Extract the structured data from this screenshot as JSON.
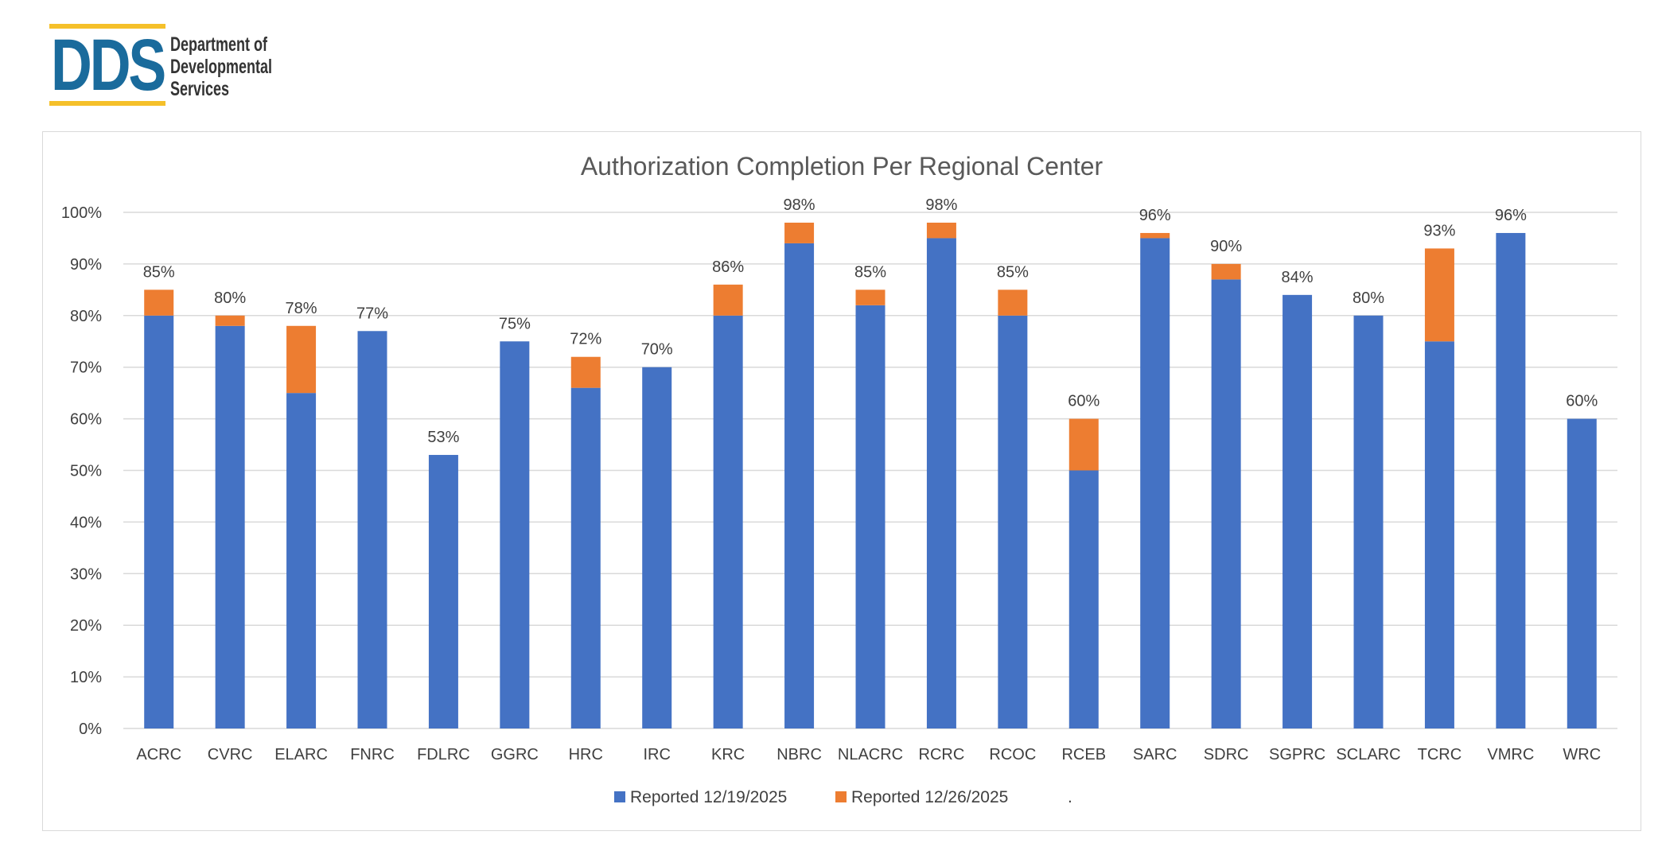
{
  "logo": {
    "abbr": "DDS",
    "lines": [
      "Department of",
      "Developmental",
      "Services"
    ]
  },
  "colors": {
    "series1": "#4472c4",
    "series2": "#ed7d31",
    "grid": "#d9d9d9",
    "text": "#404040"
  },
  "chart_data": {
    "type": "bar",
    "stacked": true,
    "title": "Authorization Completion Per Regional Center",
    "xlabel": "",
    "ylabel": "",
    "ylim": [
      0,
      100
    ],
    "yticks": [
      "0%",
      "10%",
      "20%",
      "30%",
      "40%",
      "50%",
      "60%",
      "70%",
      "80%",
      "90%",
      "100%"
    ],
    "grid": true,
    "legend_position": "bottom",
    "categories": [
      "ACRC",
      "CVRC",
      "ELARC",
      "FNRC",
      "FDLRC",
      "GGRC",
      "HRC",
      "IRC",
      "KRC",
      "NBRC",
      "NLACRC",
      "RCRC",
      "RCOC",
      "RCEB",
      "SARC",
      "SDRC",
      "SGPRC",
      "SCLARC",
      "TCRC",
      "VMRC",
      "WRC"
    ],
    "series": [
      {
        "name": "Reported 12/19/2025",
        "color": "#4472c4",
        "values": [
          80,
          78,
          65,
          77,
          53,
          75,
          66,
          70,
          80,
          94,
          82,
          95,
          80,
          50,
          95,
          87,
          84,
          80,
          75,
          96,
          60
        ]
      },
      {
        "name": "Reported 12/26/2025",
        "color": "#ed7d31",
        "values": [
          5,
          2,
          13,
          0,
          0,
          0,
          6,
          0,
          6,
          4,
          3,
          3,
          5,
          10,
          1,
          3,
          0,
          0,
          18,
          0,
          0
        ]
      }
    ],
    "data_labels": [
      "85%",
      "80%",
      "78%",
      "77%",
      "53%",
      "75%",
      "72%",
      "70%",
      "86%",
      "98%",
      "85%",
      "98%",
      "85%",
      "60%",
      "96%",
      "90%",
      "84%",
      "80%",
      "93%",
      "96%",
      "60%"
    ],
    "legend_extra": "."
  }
}
